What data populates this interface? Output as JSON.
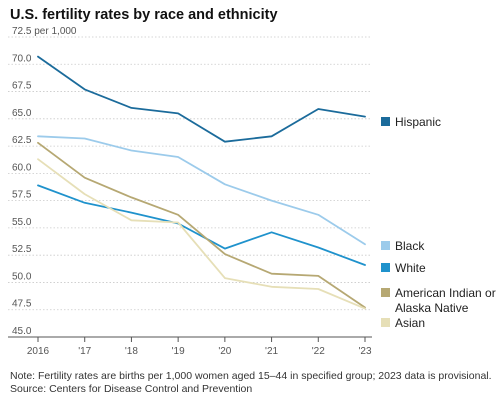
{
  "chart_data": {
    "type": "line",
    "title": "U.S. fertility rates by race and ethnicity",
    "y_unit_label": "72.5 per 1,000",
    "x": [
      2016,
      2017,
      2018,
      2019,
      2020,
      2021,
      2022,
      2023
    ],
    "x_tick_labels": [
      "2016",
      "'17",
      "'18",
      "'19",
      "'20",
      "'21",
      "'22",
      "'23"
    ],
    "y_ticks": [
      72.5,
      70.0,
      67.5,
      65.0,
      62.5,
      60.0,
      57.5,
      55.0,
      52.5,
      50.0,
      47.5,
      45.0
    ],
    "y_tick_labels": [
      "",
      "70.0",
      "67.5",
      "65.0",
      "62.5",
      "60.0",
      "57.5",
      "55.0",
      "52.5",
      "50.0",
      "47.5",
      "45.0"
    ],
    "ylim": [
      45.0,
      72.5
    ],
    "grid": "horizontal",
    "legend_position": "right",
    "series": [
      {
        "name": "Hispanic",
        "color": "#1b6b9b",
        "values": [
          70.7,
          67.7,
          66.0,
          65.5,
          62.9,
          63.4,
          65.9,
          65.2
        ]
      },
      {
        "name": "Black",
        "color": "#9ccbeb",
        "values": [
          63.4,
          63.2,
          62.1,
          61.5,
          59.0,
          57.5,
          56.2,
          53.5
        ]
      },
      {
        "name": "White",
        "color": "#1f92cc",
        "values": [
          58.9,
          57.3,
          56.4,
          55.4,
          53.1,
          54.6,
          53.2,
          51.6
        ]
      },
      {
        "name": "American Indian or Alaska Native",
        "label_lines": [
          "American Indian or",
          "Alaska Native"
        ],
        "color": "#b6a873",
        "values": [
          62.8,
          59.6,
          57.8,
          56.2,
          52.6,
          50.8,
          50.6,
          47.7
        ]
      },
      {
        "name": "Asian",
        "color": "#e6dfb7",
        "values": [
          61.3,
          58.1,
          55.7,
          55.5,
          50.4,
          49.6,
          49.4,
          47.6
        ]
      }
    ]
  },
  "notes": {
    "note": "Note: Fertility rates are births per 1,000 women aged 15–44 in specified group; 2023 data is provisional.",
    "source": "Source: Centers for Disease Control and Prevention"
  }
}
